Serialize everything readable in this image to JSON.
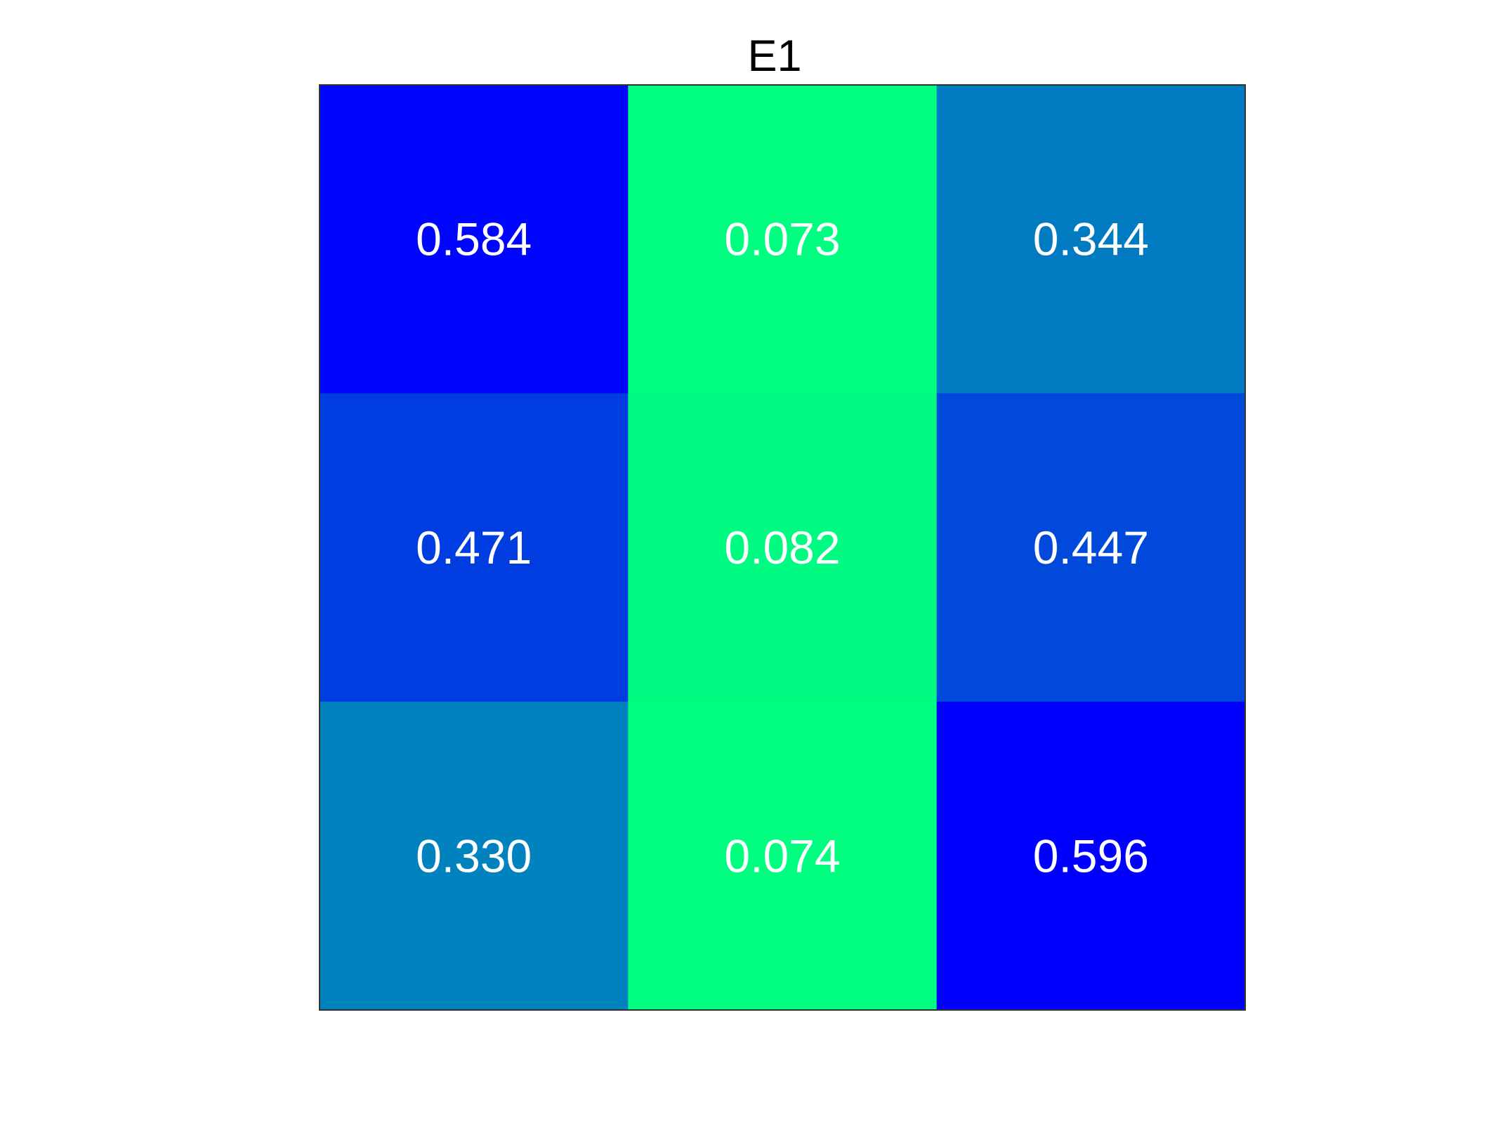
{
  "chart_data": {
    "type": "heatmap",
    "title": "E1",
    "rows": 3,
    "columns": 3,
    "values": [
      [
        0.584,
        0.073,
        0.344
      ],
      [
        0.471,
        0.082,
        0.447
      ],
      [
        0.33,
        0.074,
        0.596
      ]
    ],
    "labels": [
      [
        "0.584",
        "0.073",
        "0.344"
      ],
      [
        "0.471",
        "0.082",
        "0.447"
      ],
      [
        "0.330",
        "0.074",
        "0.596"
      ]
    ],
    "colorscale": [
      "#00ff80",
      "#0000ff"
    ],
    "cell_text_color": "#ffffff",
    "frame_color": "#333333",
    "grid": false,
    "legend": "none"
  }
}
